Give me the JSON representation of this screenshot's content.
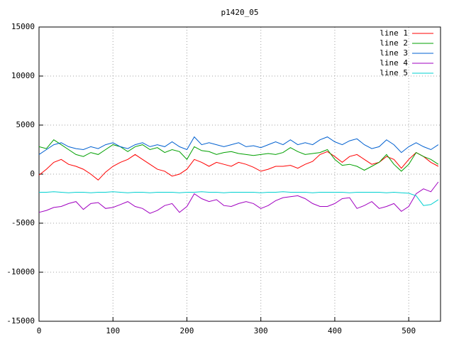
{
  "chart_data": {
    "type": "line",
    "title": "p1420_05",
    "x": [
      0,
      10,
      20,
      30,
      40,
      50,
      60,
      70,
      80,
      90,
      100,
      110,
      120,
      130,
      140,
      150,
      160,
      170,
      180,
      190,
      200,
      210,
      220,
      230,
      240,
      250,
      260,
      270,
      280,
      290,
      300,
      310,
      320,
      330,
      340,
      350,
      360,
      370,
      380,
      390,
      400,
      410,
      420,
      430,
      440,
      450,
      460,
      470,
      480,
      490,
      500,
      510,
      520,
      530,
      540
    ],
    "series": [
      {
        "name": "line 1",
        "color": "#ff0000",
        "values": [
          -100,
          500,
          1200,
          1500,
          1000,
          800,
          500,
          0,
          -600,
          200,
          800,
          1200,
          1500,
          2000,
          1500,
          1000,
          500,
          300,
          -200,
          0,
          500,
          1500,
          1200,
          800,
          1200,
          1000,
          800,
          1200,
          1000,
          700,
          300,
          500,
          800,
          800,
          900,
          600,
          1000,
          1300,
          2000,
          2300,
          1800,
          1200,
          1800,
          2000,
          1500,
          1000,
          1200,
          1800,
          1500,
          600,
          1500,
          2200,
          1800,
          1200,
          800
        ]
      },
      {
        "name": "line 2",
        "color": "#00a000",
        "values": [
          2800,
          2600,
          3500,
          3000,
          2500,
          2000,
          1800,
          2200,
          2000,
          2500,
          3000,
          2800,
          2300,
          2800,
          3000,
          2500,
          2700,
          2200,
          2500,
          2300,
          1500,
          2800,
          2400,
          2300,
          2000,
          2200,
          2300,
          2100,
          2000,
          1900,
          2000,
          2100,
          2000,
          2200,
          2700,
          2300,
          2000,
          2100,
          2200,
          2500,
          1500,
          900,
          1000,
          800,
          400,
          800,
          1200,
          2000,
          1000,
          300,
          1000,
          2200,
          1800,
          1500,
          1000
        ]
      },
      {
        "name": "line 3",
        "color": "#0060d0",
        "values": [
          2000,
          2500,
          3000,
          3200,
          2800,
          2600,
          2500,
          2800,
          2600,
          3000,
          3200,
          2800,
          2600,
          3000,
          3200,
          2800,
          3000,
          2800,
          3300,
          2800,
          2500,
          3800,
          3000,
          3200,
          3000,
          2800,
          3000,
          3200,
          2800,
          2900,
          2700,
          3000,
          3300,
          3000,
          3500,
          3000,
          3200,
          3000,
          3500,
          3800,
          3300,
          3000,
          3400,
          3600,
          3000,
          2600,
          2800,
          3500,
          3000,
          2200,
          2800,
          3200,
          2800,
          2500,
          3000
        ]
      },
      {
        "name": "line 4",
        "color": "#a000c0",
        "values": [
          -3900,
          -3700,
          -3400,
          -3300,
          -3000,
          -2800,
          -3600,
          -3000,
          -2900,
          -3500,
          -3400,
          -3100,
          -2800,
          -3300,
          -3500,
          -4000,
          -3700,
          -3200,
          -3000,
          -3900,
          -3300,
          -2000,
          -2500,
          -2800,
          -2600,
          -3200,
          -3300,
          -3000,
          -2800,
          -3000,
          -3500,
          -3200,
          -2700,
          -2400,
          -2300,
          -2200,
          -2500,
          -3000,
          -3300,
          -3300,
          -3000,
          -2500,
          -2400,
          -3500,
          -3200,
          -2800,
          -3500,
          -3300,
          -3000,
          -3800,
          -3300,
          -2000,
          -1500,
          -1800,
          -800
        ]
      },
      {
        "name": "line 5",
        "color": "#00d0d0",
        "values": [
          -1850,
          -1850,
          -1800,
          -1850,
          -1900,
          -1850,
          -1850,
          -1900,
          -1850,
          -1850,
          -1800,
          -1850,
          -1900,
          -1850,
          -1850,
          -1900,
          -1850,
          -1850,
          -1850,
          -1900,
          -1850,
          -1850,
          -1800,
          -1850,
          -1850,
          -1900,
          -1850,
          -1850,
          -1850,
          -1850,
          -1900,
          -1850,
          -1850,
          -1800,
          -1850,
          -1850,
          -1850,
          -1900,
          -1850,
          -1850,
          -1850,
          -1850,
          -1900,
          -1850,
          -1850,
          -1850,
          -1850,
          -1900,
          -1850,
          -1900,
          -1950,
          -2200,
          -3200,
          -3100,
          -2600
        ]
      }
    ],
    "xlim": [
      0,
      543
    ],
    "ylim": [
      -15000,
      15000
    ],
    "xticks": [
      0,
      100,
      200,
      300,
      400,
      500
    ],
    "yticks": [
      -15000,
      -10000,
      -5000,
      0,
      5000,
      10000,
      15000
    ],
    "grid": true,
    "legend": "top-right"
  }
}
